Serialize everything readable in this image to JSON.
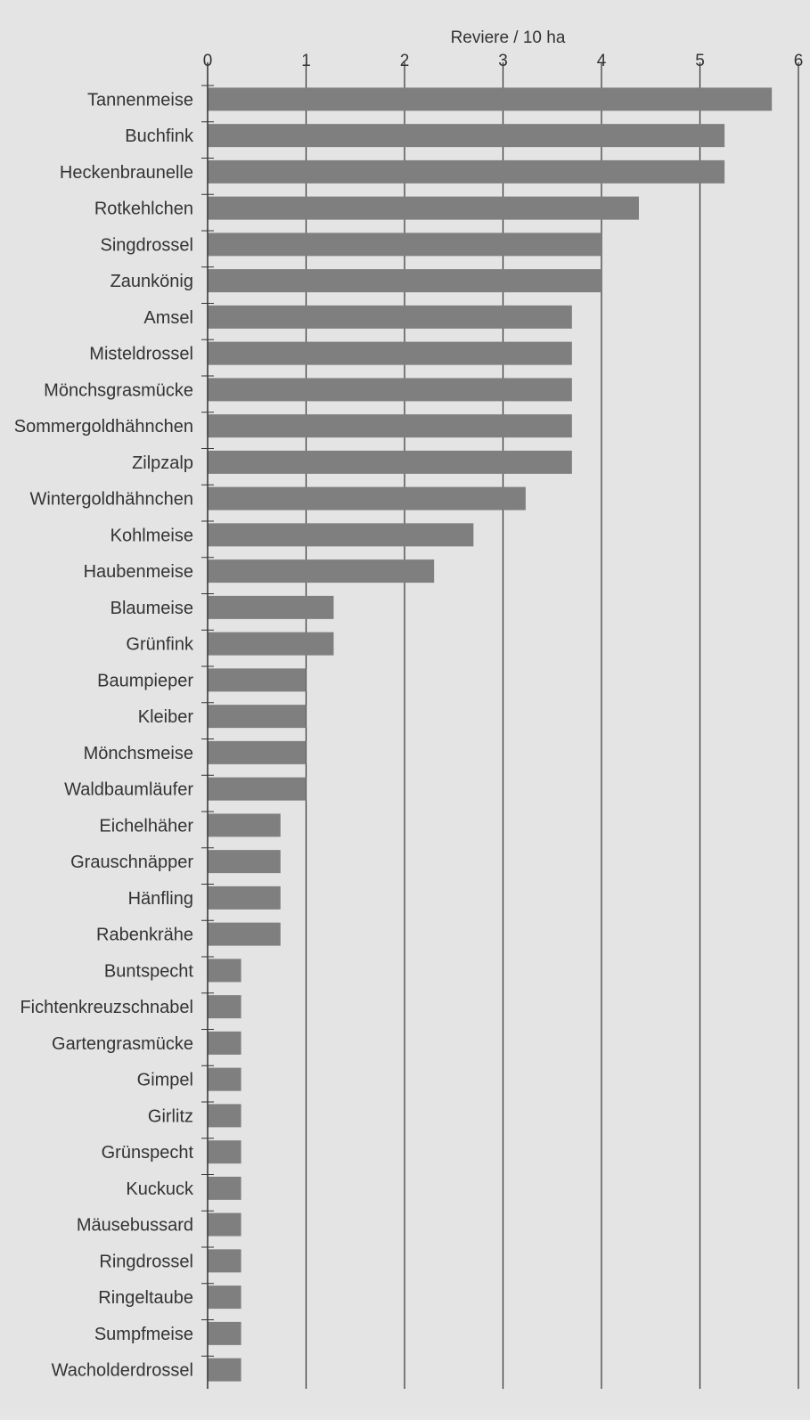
{
  "chart_data": {
    "type": "bar",
    "orientation": "horizontal",
    "title": "",
    "xlabel": "Reviere / 10 ha",
    "ylabel": "",
    "xlim": [
      0,
      6
    ],
    "x_ticks": [
      "0",
      "1",
      "2",
      "3",
      "4",
      "5",
      "6"
    ],
    "x_axis_position": "top",
    "grid": true,
    "legend": "none",
    "bar_color": "#7f7f7f",
    "categories": [
      "Tannenmeise",
      "Buchfink",
      "Heckenbraunelle",
      "Rotkehlchen",
      "Singdrossel",
      "Zaunkönig",
      "Amsel",
      "Misteldrossel",
      "Mönchsgrasmücke",
      "Sommergoldhähnchen",
      "Zilpzalp",
      "Wintergoldhähnchen",
      "Kohlmeise",
      "Haubenmeise",
      "Blaumeise",
      "Grünfink",
      "Baumpieper",
      "Kleiber",
      "Mönchsmeise",
      "Waldbaumläufer",
      "Eichelhäher",
      "Grauschnäpper",
      "Hänfling",
      "Rabenkrähe",
      "Buntspecht",
      "Fichtenkreuzschnabel",
      "Gartengrasmücke",
      "Gimpel",
      "Girlitz",
      "Grünspecht",
      "Kuckuck",
      "Mäusebussard",
      "Ringdrossel",
      "Ringeltaube",
      "Sumpfmeise",
      "Wacholderdrossel"
    ],
    "values": [
      5.73,
      5.25,
      5.25,
      4.38,
      4.0,
      4.0,
      3.7,
      3.7,
      3.7,
      3.7,
      3.7,
      3.23,
      2.7,
      2.3,
      1.28,
      1.28,
      1.0,
      1.0,
      1.0,
      1.0,
      0.74,
      0.74,
      0.74,
      0.74,
      0.34,
      0.34,
      0.34,
      0.34,
      0.34,
      0.34,
      0.34,
      0.34,
      0.34,
      0.34,
      0.34,
      0.34
    ]
  }
}
